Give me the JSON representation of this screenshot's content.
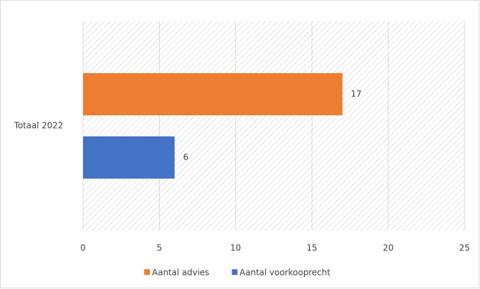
{
  "chart_data": {
    "type": "bar",
    "orientation": "horizontal",
    "categories": [
      "Totaal 2022"
    ],
    "series": [
      {
        "name": "Aantal advies",
        "color": "#ed7d31",
        "values": [
          17
        ]
      },
      {
        "name": "Aantal voorkooprecht",
        "color": "#4472c4",
        "values": [
          6
        ]
      }
    ],
    "xlim": [
      0,
      25
    ],
    "xticks": [
      0,
      5,
      10,
      15,
      20,
      25
    ],
    "grid": true,
    "data_labels": true,
    "legend": "bottom"
  }
}
